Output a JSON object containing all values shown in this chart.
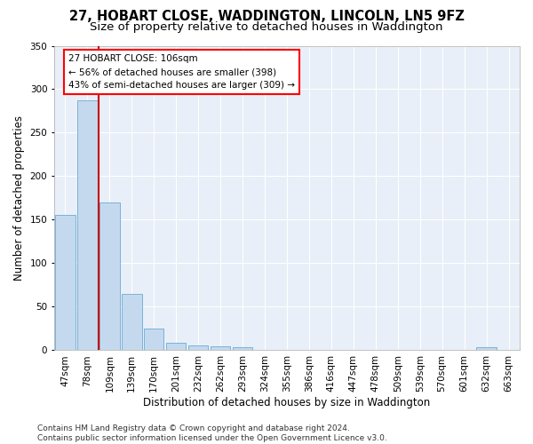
{
  "title_line1": "27, HOBART CLOSE, WADDINGTON, LINCOLN, LN5 9FZ",
  "title_line2": "Size of property relative to detached houses in Waddington",
  "xlabel": "Distribution of detached houses by size in Waddington",
  "ylabel": "Number of detached properties",
  "bar_color": "#c5d9ee",
  "bar_edge_color": "#6aaad4",
  "background_color": "#e8eff8",
  "grid_color": "#ffffff",
  "annotation_text": "27 HOBART CLOSE: 106sqm\n← 56% of detached houses are smaller (398)\n43% of semi-detached houses are larger (309) →",
  "marker_color": "#cc0000",
  "categories": [
    "47sqm",
    "78sqm",
    "109sqm",
    "139sqm",
    "170sqm",
    "201sqm",
    "232sqm",
    "262sqm",
    "293sqm",
    "324sqm",
    "355sqm",
    "386sqm",
    "416sqm",
    "447sqm",
    "478sqm",
    "509sqm",
    "539sqm",
    "570sqm",
    "601sqm",
    "632sqm",
    "663sqm"
  ],
  "values": [
    156,
    287,
    170,
    65,
    25,
    9,
    6,
    5,
    4,
    0,
    0,
    0,
    0,
    0,
    0,
    0,
    0,
    0,
    0,
    4,
    0
  ],
  "ylim": [
    0,
    350
  ],
  "yticks": [
    0,
    50,
    100,
    150,
    200,
    250,
    300,
    350
  ],
  "footnote": "Contains HM Land Registry data © Crown copyright and database right 2024.\nContains public sector information licensed under the Open Government Licence v3.0.",
  "title_fontsize": 10.5,
  "subtitle_fontsize": 9.5,
  "label_fontsize": 8.5,
  "tick_fontsize": 7.5,
  "annot_fontsize": 7.5,
  "footnote_fontsize": 6.5
}
